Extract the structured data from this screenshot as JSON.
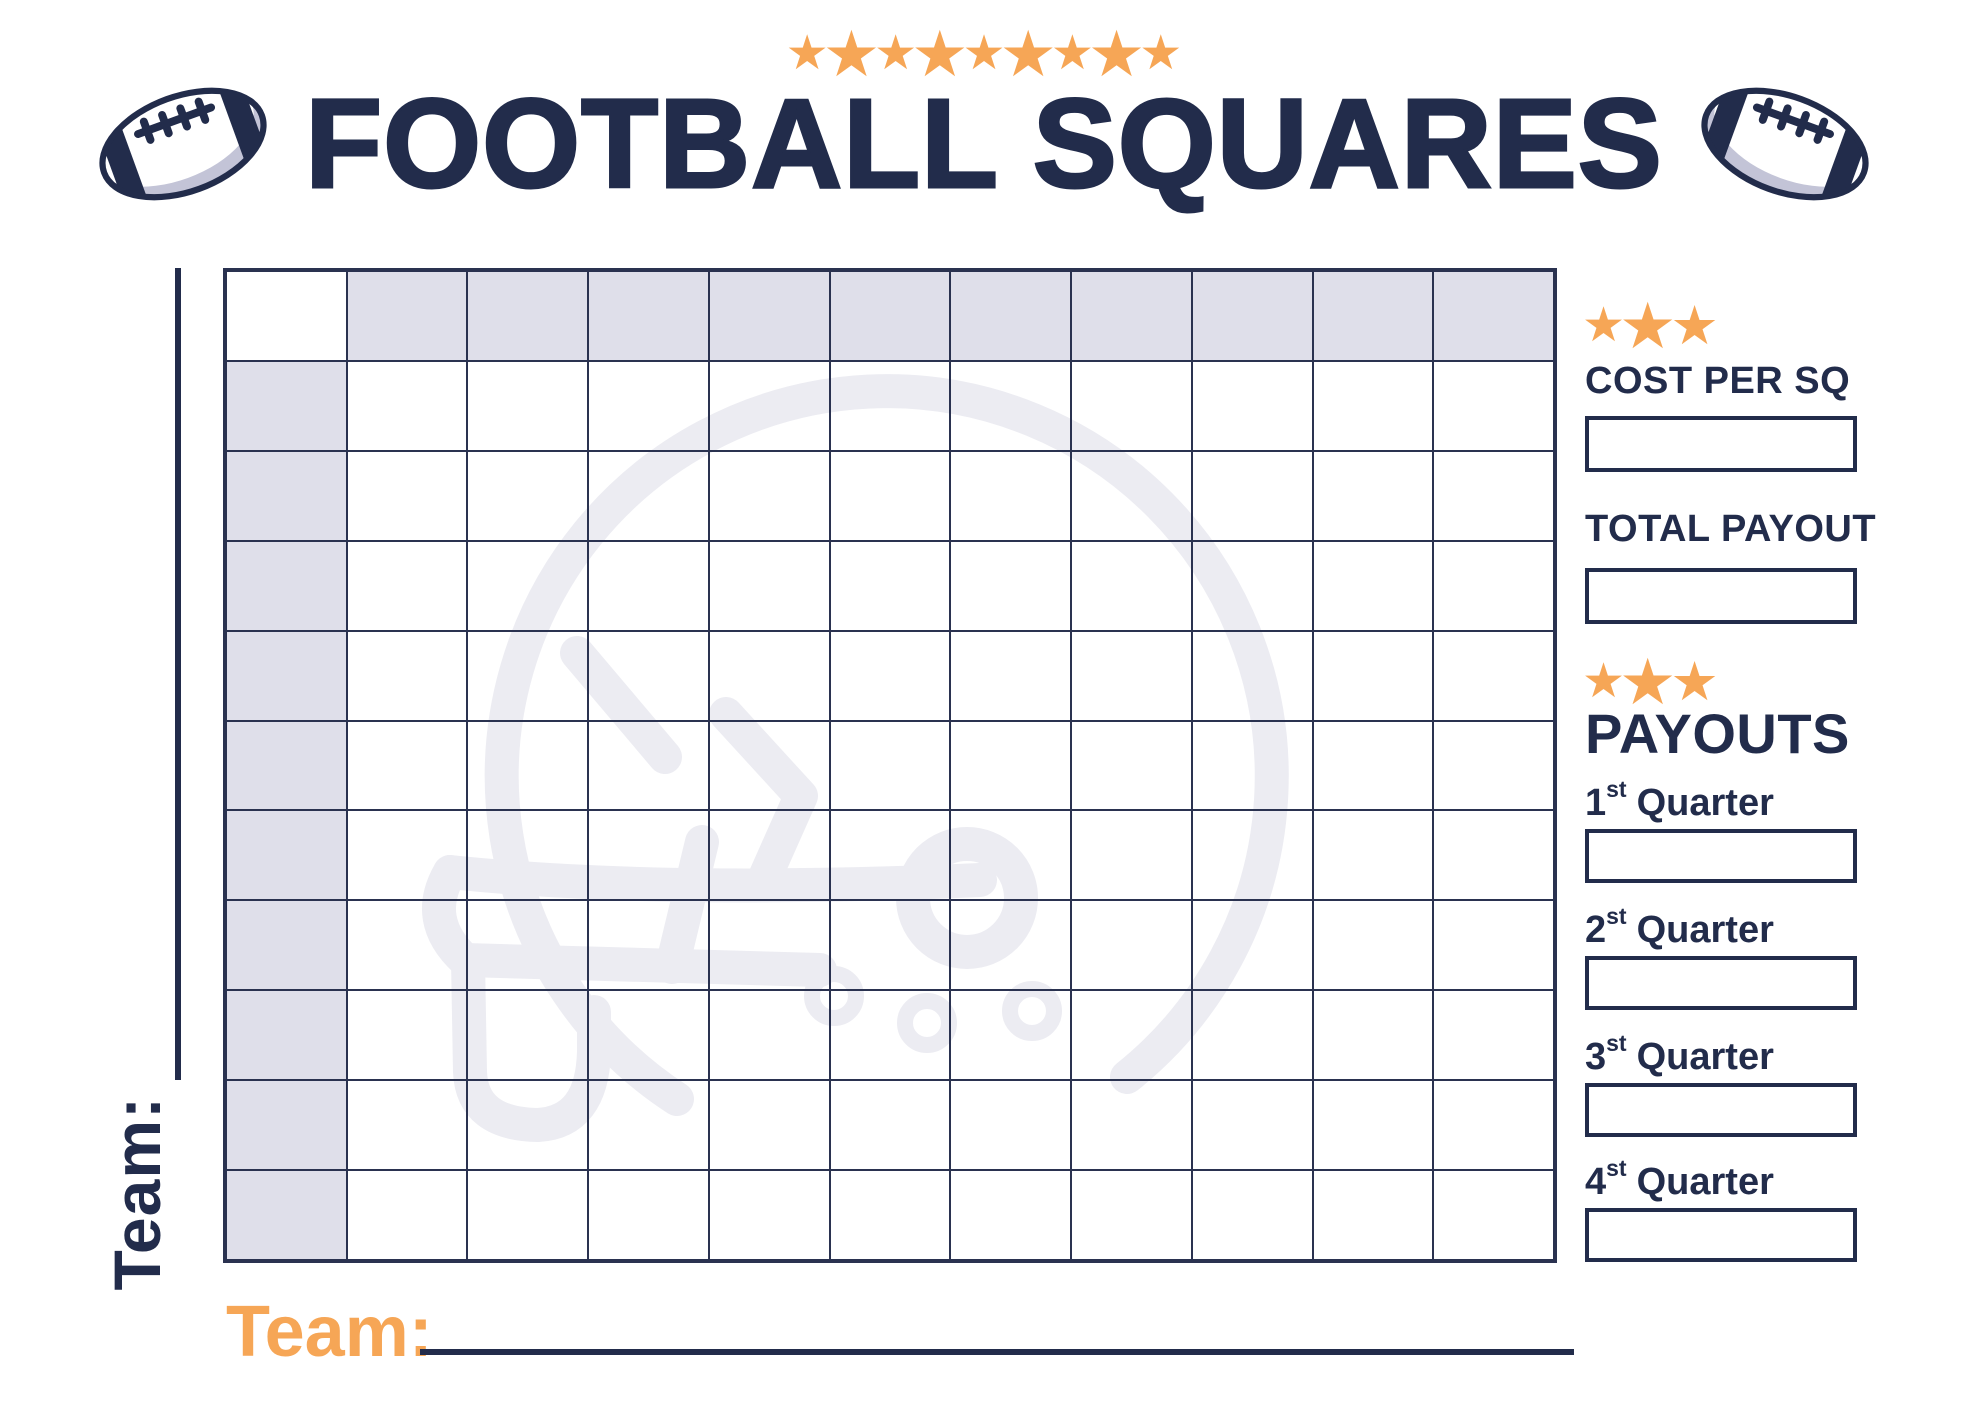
{
  "page": {
    "title": "FOOTBALL SQUARES"
  },
  "icons": {
    "star": "★",
    "football_left": "football-icon",
    "football_right": "football-icon",
    "helmet_watermark": "football-helmet-watermark"
  },
  "header": {
    "stars_pattern": [
      "s",
      "l",
      "s",
      "l",
      "s",
      "l",
      "s",
      "l",
      "s"
    ]
  },
  "teams": {
    "left_label": "Team:",
    "bottom_label": "Team:"
  },
  "grid": {
    "rows": 11,
    "cols": 11,
    "note_shaded": "top header row and left header column shaded, corner white",
    "header_fill": "#DFDFEA"
  },
  "sidebar": {
    "stars_pattern": [
      "s",
      "l",
      "m"
    ],
    "cost_label": "COST PER SQ",
    "cost_value": "",
    "total_label": "TOTAL PAYOUT",
    "total_value": "",
    "payouts_label": "PAYOUTS",
    "quarters": [
      {
        "num": "1",
        "suffix": "st",
        "word": "Quarter",
        "value": ""
      },
      {
        "num": "2",
        "suffix": "st",
        "word": "Quarter",
        "value": ""
      },
      {
        "num": "3",
        "suffix": "st",
        "word": "Quarter",
        "value": ""
      },
      {
        "num": "4",
        "suffix": "st",
        "word": "Quarter",
        "value": ""
      }
    ]
  },
  "colors": {
    "navy": "#222C4B",
    "grid_line": "#2A3250",
    "orange": "#F6A656",
    "shaded_cell": "#DFDFEA",
    "watermark": "#ECECF2",
    "football_shadow": "#C3C4D7"
  }
}
